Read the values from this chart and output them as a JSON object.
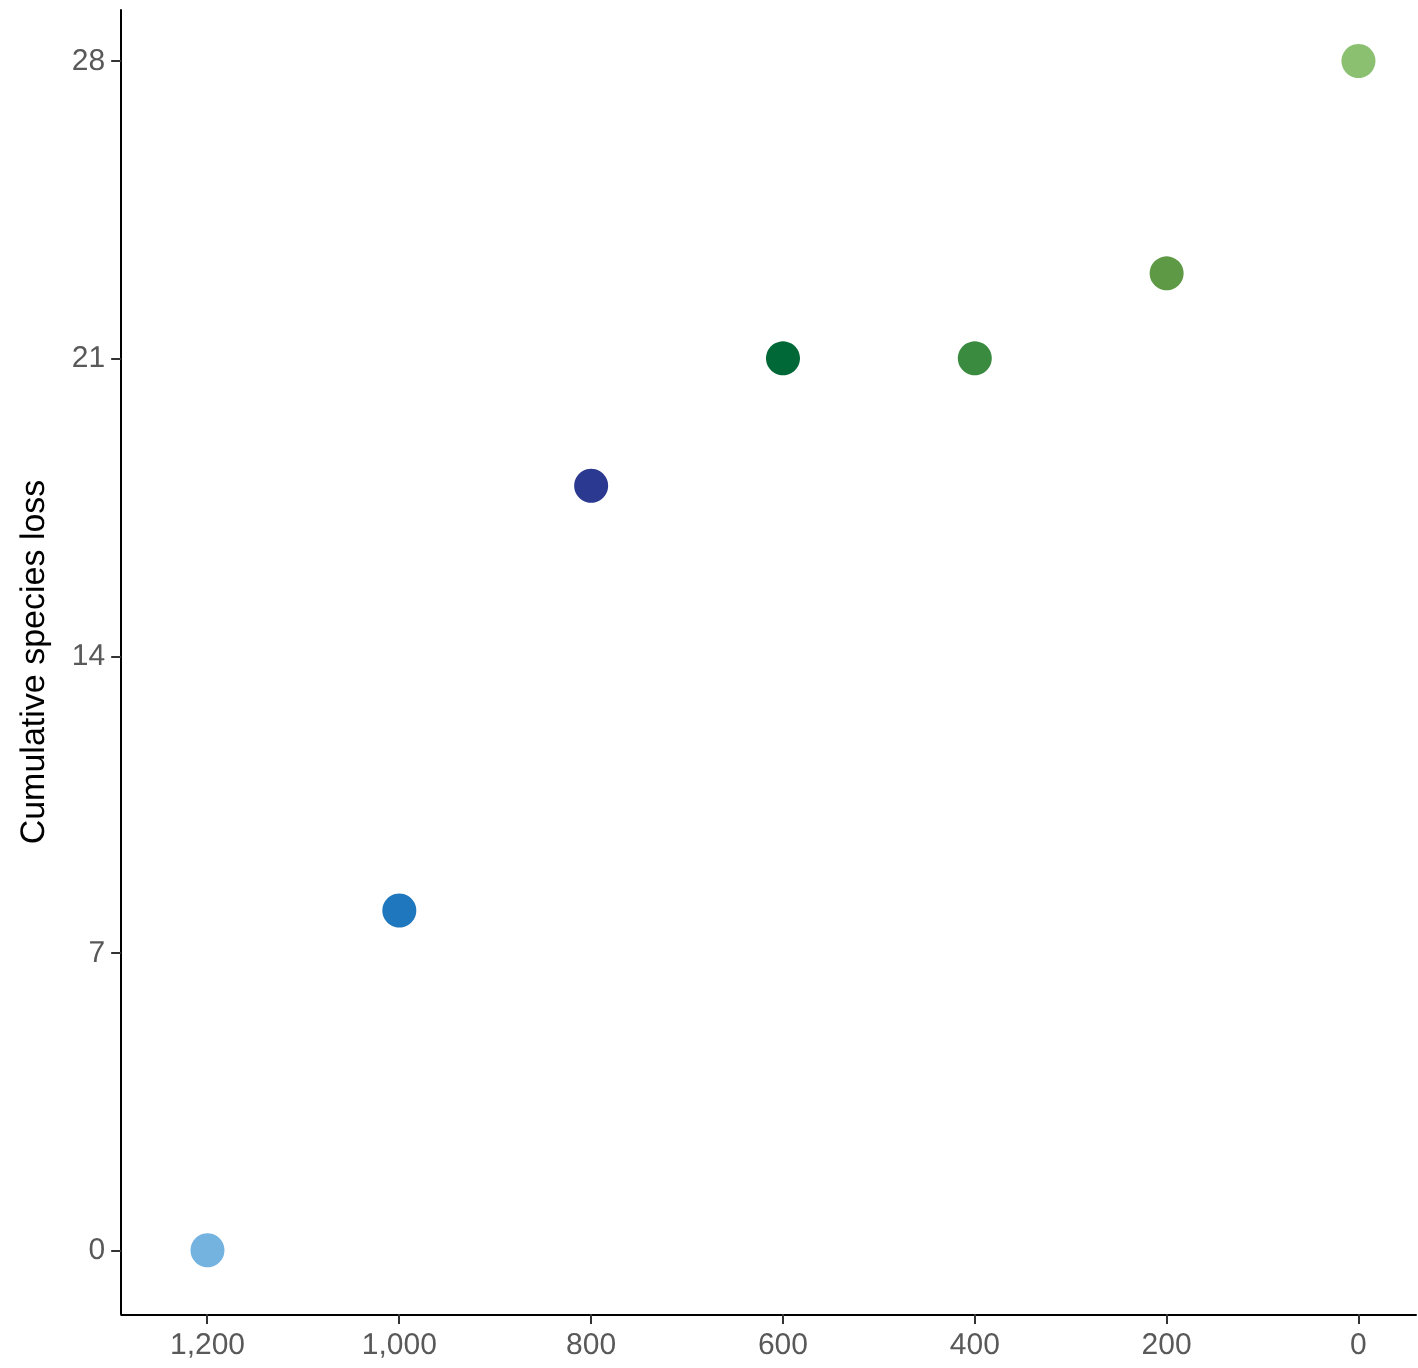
{
  "chart_data": {
    "type": "scatter",
    "ylabel": "Cumulative species loss",
    "x": [
      1200,
      1000,
      800,
      600,
      400,
      200,
      0
    ],
    "values": [
      0,
      8,
      18,
      21,
      21,
      23,
      28
    ],
    "colors": [
      "#74b3e0",
      "#1f78be",
      "#2b3990",
      "#006837",
      "#3a8b3f",
      "#5e9a45",
      "#8bc070"
    ],
    "xlim": [
      1290,
      -60
    ],
    "ylim": [
      -1.5,
      29.2
    ],
    "xticks": [
      {
        "value": 1200,
        "label": "1,200"
      },
      {
        "value": 1000,
        "label": "1,000"
      },
      800,
      600,
      400,
      200,
      0
    ],
    "yticks": [
      0,
      7,
      14,
      21,
      28
    ],
    "marker": "circle"
  }
}
